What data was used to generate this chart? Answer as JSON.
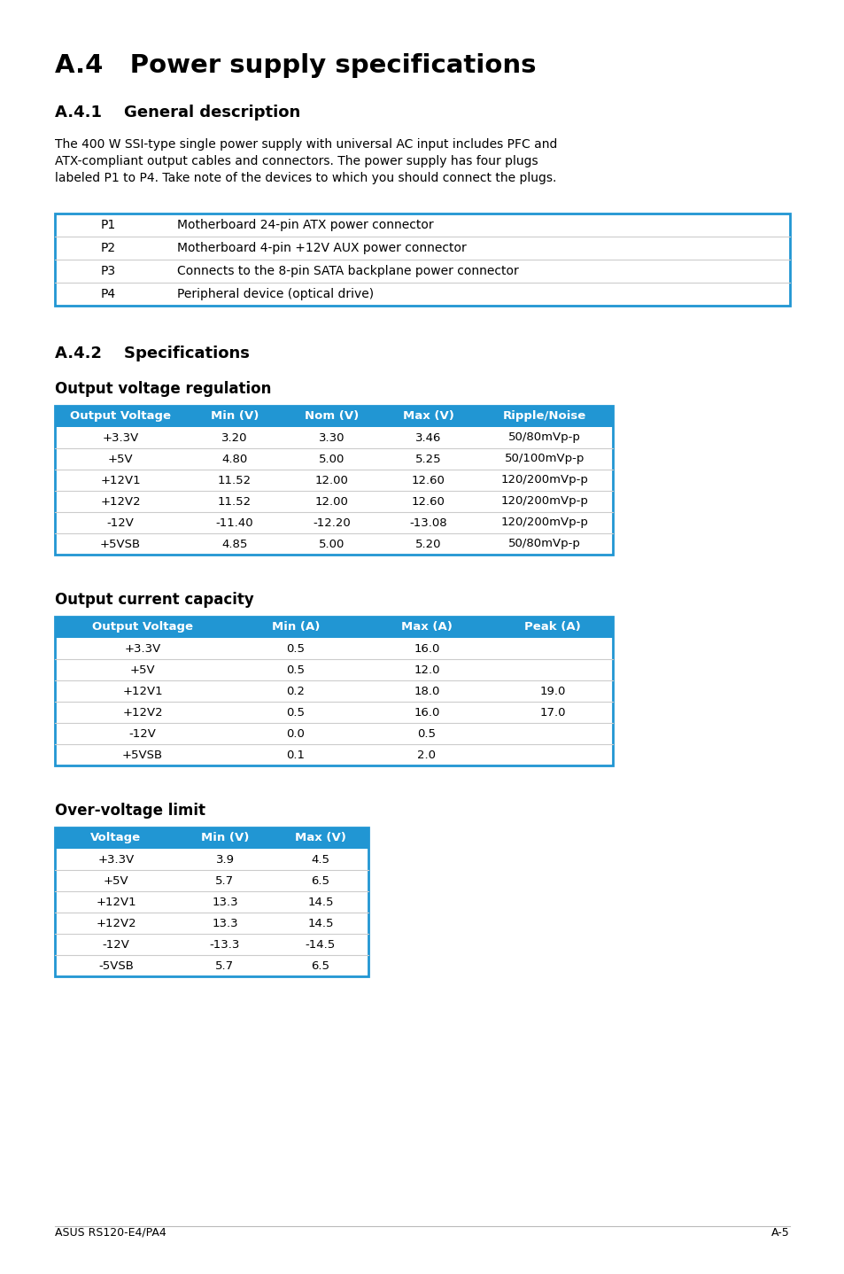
{
  "title": "A.4   Power supply specifications",
  "section_41": "A.4.1    General description",
  "body_text": "The 400 W SSI-type single power supply with universal AC input includes PFC and\nATX-compliant output cables and connectors. The power supply has four plugs\nlabeled P1 to P4. Take note of the devices to which you should connect the plugs.",
  "table1_data": [
    [
      "P1",
      "Motherboard 24-pin ATX power connector"
    ],
    [
      "P2",
      "Motherboard 4-pin +12V AUX power connector"
    ],
    [
      "P3",
      "Connects to the 8-pin SATA backplane power connector"
    ],
    [
      "P4",
      "Peripheral device (optical drive)"
    ]
  ],
  "section_42": "A.4.2    Specifications",
  "subsection_volt": "Output voltage regulation",
  "volt_header": [
    "Output Voltage",
    "Min (V)",
    "Nom (V)",
    "Max (V)",
    "Ripple/Noise"
  ],
  "volt_data": [
    [
      "+3.3V",
      "3.20",
      "3.30",
      "3.46",
      "50/80mVp-p"
    ],
    [
      "+5V",
      "4.80",
      "5.00",
      "5.25",
      "50/100mVp-p"
    ],
    [
      "+12V1",
      "11.52",
      "12.00",
      "12.60",
      "120/200mVp-p"
    ],
    [
      "+12V2",
      "11.52",
      "12.00",
      "12.60",
      "120/200mVp-p"
    ],
    [
      "-12V",
      "-11.40",
      "-12.20",
      "-13.08",
      "120/200mVp-p"
    ],
    [
      "+5VSB",
      "4.85",
      "5.00",
      "5.20",
      "50/80mVp-p"
    ]
  ],
  "subsection_curr": "Output current capacity",
  "curr_header": [
    "Output Voltage",
    "Min (A)",
    "Max (A)",
    "Peak (A)"
  ],
  "curr_data": [
    [
      "+3.3V",
      "0.5",
      "16.0",
      ""
    ],
    [
      "+5V",
      "0.5",
      "12.0",
      ""
    ],
    [
      "+12V1",
      "0.2",
      "18.0",
      "19.0"
    ],
    [
      "+12V2",
      "0.5",
      "16.0",
      "17.0"
    ],
    [
      "-12V",
      "0.0",
      "0.5",
      ""
    ],
    [
      "+5VSB",
      "0.1",
      "2.0",
      ""
    ]
  ],
  "subsection_overvolt": "Over-voltage limit",
  "overvolt_header": [
    "Voltage",
    "Min (V)",
    "Max (V)"
  ],
  "overvolt_data": [
    [
      "+3.3V",
      "3.9",
      "4.5"
    ],
    [
      "+5V",
      "5.7",
      "6.5"
    ],
    [
      "+12V1",
      "13.3",
      "14.5"
    ],
    [
      "+12V2",
      "13.3",
      "14.5"
    ],
    [
      "-12V",
      "-13.3",
      "-14.5"
    ],
    [
      "-5VSB",
      "5.7",
      "6.5"
    ]
  ],
  "footer_left": "ASUS RS120-E4/PA4",
  "footer_right": "A-5",
  "header_color": "#2196d3",
  "header_text_color": "#ffffff",
  "border_color": "#2196d3",
  "row_divider_color": "#cccccc"
}
